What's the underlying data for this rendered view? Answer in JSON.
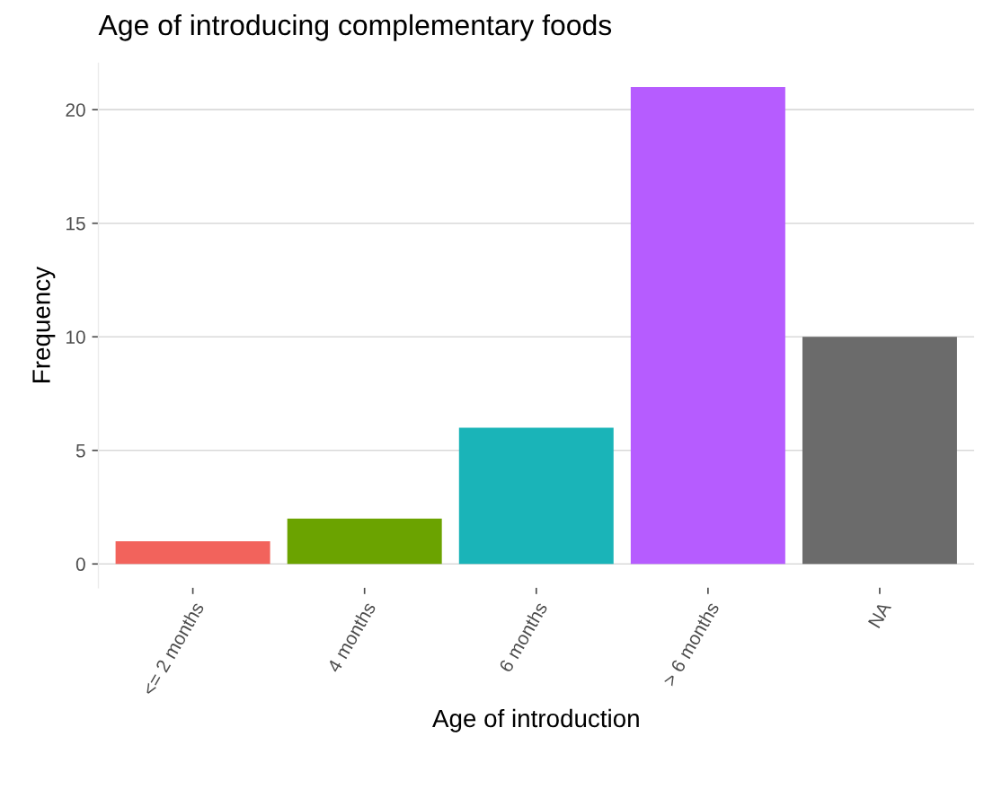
{
  "chart_data": {
    "type": "bar",
    "title": "Age of introducing complementary foods",
    "xlabel": "Age of introduction",
    "ylabel": "Frequency",
    "categories": [
      "<= 2 months",
      "4 months",
      "6 months",
      "> 6 months",
      "NA"
    ],
    "values": [
      1,
      2,
      6,
      21,
      10
    ],
    "colors": [
      "#f2635c",
      "#6ba300",
      "#1ab4b8",
      "#b65cff",
      "#6b6b6b"
    ],
    "ylim": [
      -1.05,
      22.05
    ],
    "yticks": [
      0,
      5,
      10,
      15,
      20
    ],
    "grid": "y"
  }
}
